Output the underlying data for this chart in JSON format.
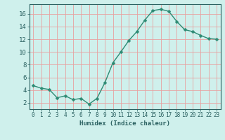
{
  "x": [
    0,
    1,
    2,
    3,
    4,
    5,
    6,
    7,
    8,
    9,
    10,
    11,
    12,
    13,
    14,
    15,
    16,
    17,
    18,
    19,
    20,
    21,
    22,
    23
  ],
  "y": [
    4.7,
    4.3,
    4.1,
    2.8,
    3.1,
    2.5,
    2.7,
    1.8,
    2.7,
    5.2,
    8.3,
    10.0,
    11.8,
    13.2,
    15.0,
    16.5,
    16.7,
    16.4,
    14.8,
    13.5,
    13.2,
    12.6,
    12.1,
    12.0
  ],
  "line_color": "#2e8b74",
  "marker": "D",
  "marker_size": 2.5,
  "bg_color": "#cff0ec",
  "grid_color": "#e8a0a0",
  "xlabel": "Humidex (Indice chaleur)",
  "ylim": [
    1,
    17.5
  ],
  "xlim": [
    -0.5,
    23.5
  ],
  "yticks": [
    2,
    4,
    6,
    8,
    10,
    12,
    14,
    16
  ],
  "xticks": [
    0,
    1,
    2,
    3,
    4,
    5,
    6,
    7,
    8,
    9,
    10,
    11,
    12,
    13,
    14,
    15,
    16,
    17,
    18,
    19,
    20,
    21,
    22,
    23
  ],
  "tick_color": "#2a6060",
  "xlabel_fontsize": 6.5,
  "tick_fontsize": 5.5,
  "ytick_fontsize": 6.5,
  "linewidth": 1.0
}
